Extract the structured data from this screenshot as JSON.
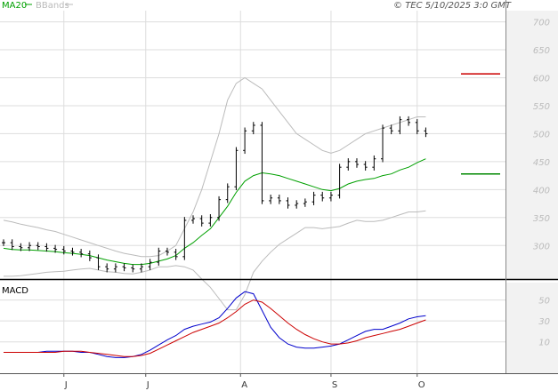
{
  "header": {
    "legend_ma": "MA20",
    "legend_bbands": "BBands",
    "timestamp": "© TEC 5/10/2025 3:0 GMT"
  },
  "colors": {
    "price": "#000000",
    "ma": "#00a000",
    "bbands": "#bbbbbb",
    "macd": "#0000cc",
    "signal": "#cc0000",
    "target_high": "#cc0000",
    "target_low": "#008800",
    "grid": "#dddddd"
  },
  "chart_data": [
    {
      "type": "line",
      "panel": "price",
      "y_ticks": [
        300,
        350,
        400,
        450,
        500,
        550,
        600,
        650,
        700
      ],
      "ylim": [
        240,
        720
      ],
      "grid": true,
      "months": [
        {
          "label": "J",
          "x": 14
        },
        {
          "label": "J",
          "x": 33
        },
        {
          "label": "A",
          "x": 55
        },
        {
          "label": "S",
          "x": 76
        },
        {
          "label": "O",
          "x": 96
        }
      ],
      "xlim": [
        0,
        107
      ],
      "levels": [
        {
          "name": "607",
          "value": 607
        },
        {
          "name": "428",
          "value": 428
        }
      ],
      "x": [
        0,
        2,
        4,
        6,
        8,
        10,
        12,
        14,
        16,
        18,
        20,
        22,
        24,
        26,
        28,
        30,
        32,
        34,
        36,
        38,
        40,
        42,
        44,
        46,
        48,
        50,
        52,
        54,
        56,
        58,
        60,
        62,
        64,
        66,
        68,
        70,
        72,
        74,
        76,
        78,
        80,
        82,
        84,
        86,
        88,
        90,
        92,
        94,
        96,
        98
      ],
      "close": [
        305,
        298,
        296,
        300,
        298,
        295,
        293,
        290,
        288,
        285,
        278,
        262,
        258,
        262,
        260,
        258,
        262,
        270,
        290,
        288,
        280,
        345,
        348,
        340,
        350,
        382,
        405,
        470,
        505,
        515,
        380,
        385,
        380,
        372,
        375,
        378,
        390,
        385,
        390,
        440,
        450,
        445,
        440,
        455,
        510,
        505,
        525,
        520,
        505,
        500
      ],
      "ma20": [
        295,
        293,
        292,
        292,
        291,
        290,
        289,
        287,
        286,
        284,
        282,
        278,
        274,
        271,
        268,
        266,
        266,
        268,
        272,
        276,
        282,
        295,
        305,
        318,
        330,
        350,
        370,
        395,
        415,
        425,
        430,
        428,
        425,
        420,
        415,
        410,
        405,
        400,
        398,
        402,
        410,
        415,
        418,
        420,
        425,
        428,
        435,
        440,
        448,
        455
      ],
      "bb_upper": [
        345,
        342,
        338,
        335,
        332,
        328,
        325,
        320,
        315,
        310,
        305,
        300,
        295,
        290,
        286,
        283,
        280,
        280,
        282,
        290,
        300,
        330,
        360,
        400,
        450,
        500,
        560,
        590,
        600,
        590,
        580,
        560,
        540,
        520,
        500,
        490,
        480,
        470,
        465,
        470,
        480,
        490,
        500,
        505,
        510,
        515,
        520,
        525,
        530,
        530
      ],
      "bb_lower": [
        245,
        245,
        246,
        248,
        250,
        252,
        253,
        254,
        256,
        258,
        259,
        256,
        253,
        252,
        250,
        249,
        252,
        256,
        262,
        262,
        264,
        262,
        256,
        240,
        225,
        205,
        185,
        185,
        212,
        252,
        272,
        288,
        302,
        312,
        322,
        332,
        332,
        330,
        332,
        334,
        340,
        345,
        343,
        343,
        345,
        350,
        355,
        360,
        360,
        362
      ]
    },
    {
      "type": "line",
      "panel": "macd",
      "title": "MACD",
      "y_ticks": [
        10,
        30,
        50
      ],
      "ylim": [
        -20,
        65
      ],
      "x": [
        0,
        2,
        4,
        6,
        8,
        10,
        12,
        14,
        16,
        18,
        20,
        22,
        24,
        26,
        28,
        30,
        32,
        34,
        36,
        38,
        40,
        42,
        44,
        46,
        48,
        50,
        52,
        54,
        56,
        58,
        60,
        62,
        64,
        66,
        68,
        70,
        72,
        74,
        76,
        78,
        80,
        82,
        84,
        86,
        88,
        90,
        92,
        94,
        96,
        98
      ],
      "macd": [
        0,
        0,
        0,
        0,
        0,
        1,
        1,
        1,
        1,
        0,
        0,
        -2,
        -4,
        -5,
        -5,
        -4,
        -2,
        2,
        7,
        12,
        16,
        22,
        25,
        27,
        29,
        33,
        42,
        52,
        58,
        56,
        40,
        24,
        14,
        8,
        5,
        4,
        4,
        5,
        6,
        8,
        12,
        16,
        20,
        22,
        22,
        25,
        28,
        32,
        34,
        35
      ],
      "signal": [
        0,
        0,
        0,
        0,
        0,
        0,
        0,
        1,
        1,
        1,
        0,
        -1,
        -2,
        -3,
        -4,
        -4,
        -3,
        -1,
        3,
        7,
        11,
        15,
        19,
        22,
        25,
        28,
        33,
        39,
        46,
        50,
        48,
        42,
        35,
        28,
        22,
        17,
        13,
        10,
        8,
        8,
        9,
        11,
        14,
        16,
        18,
        20,
        22,
        25,
        28,
        31
      ]
    }
  ]
}
